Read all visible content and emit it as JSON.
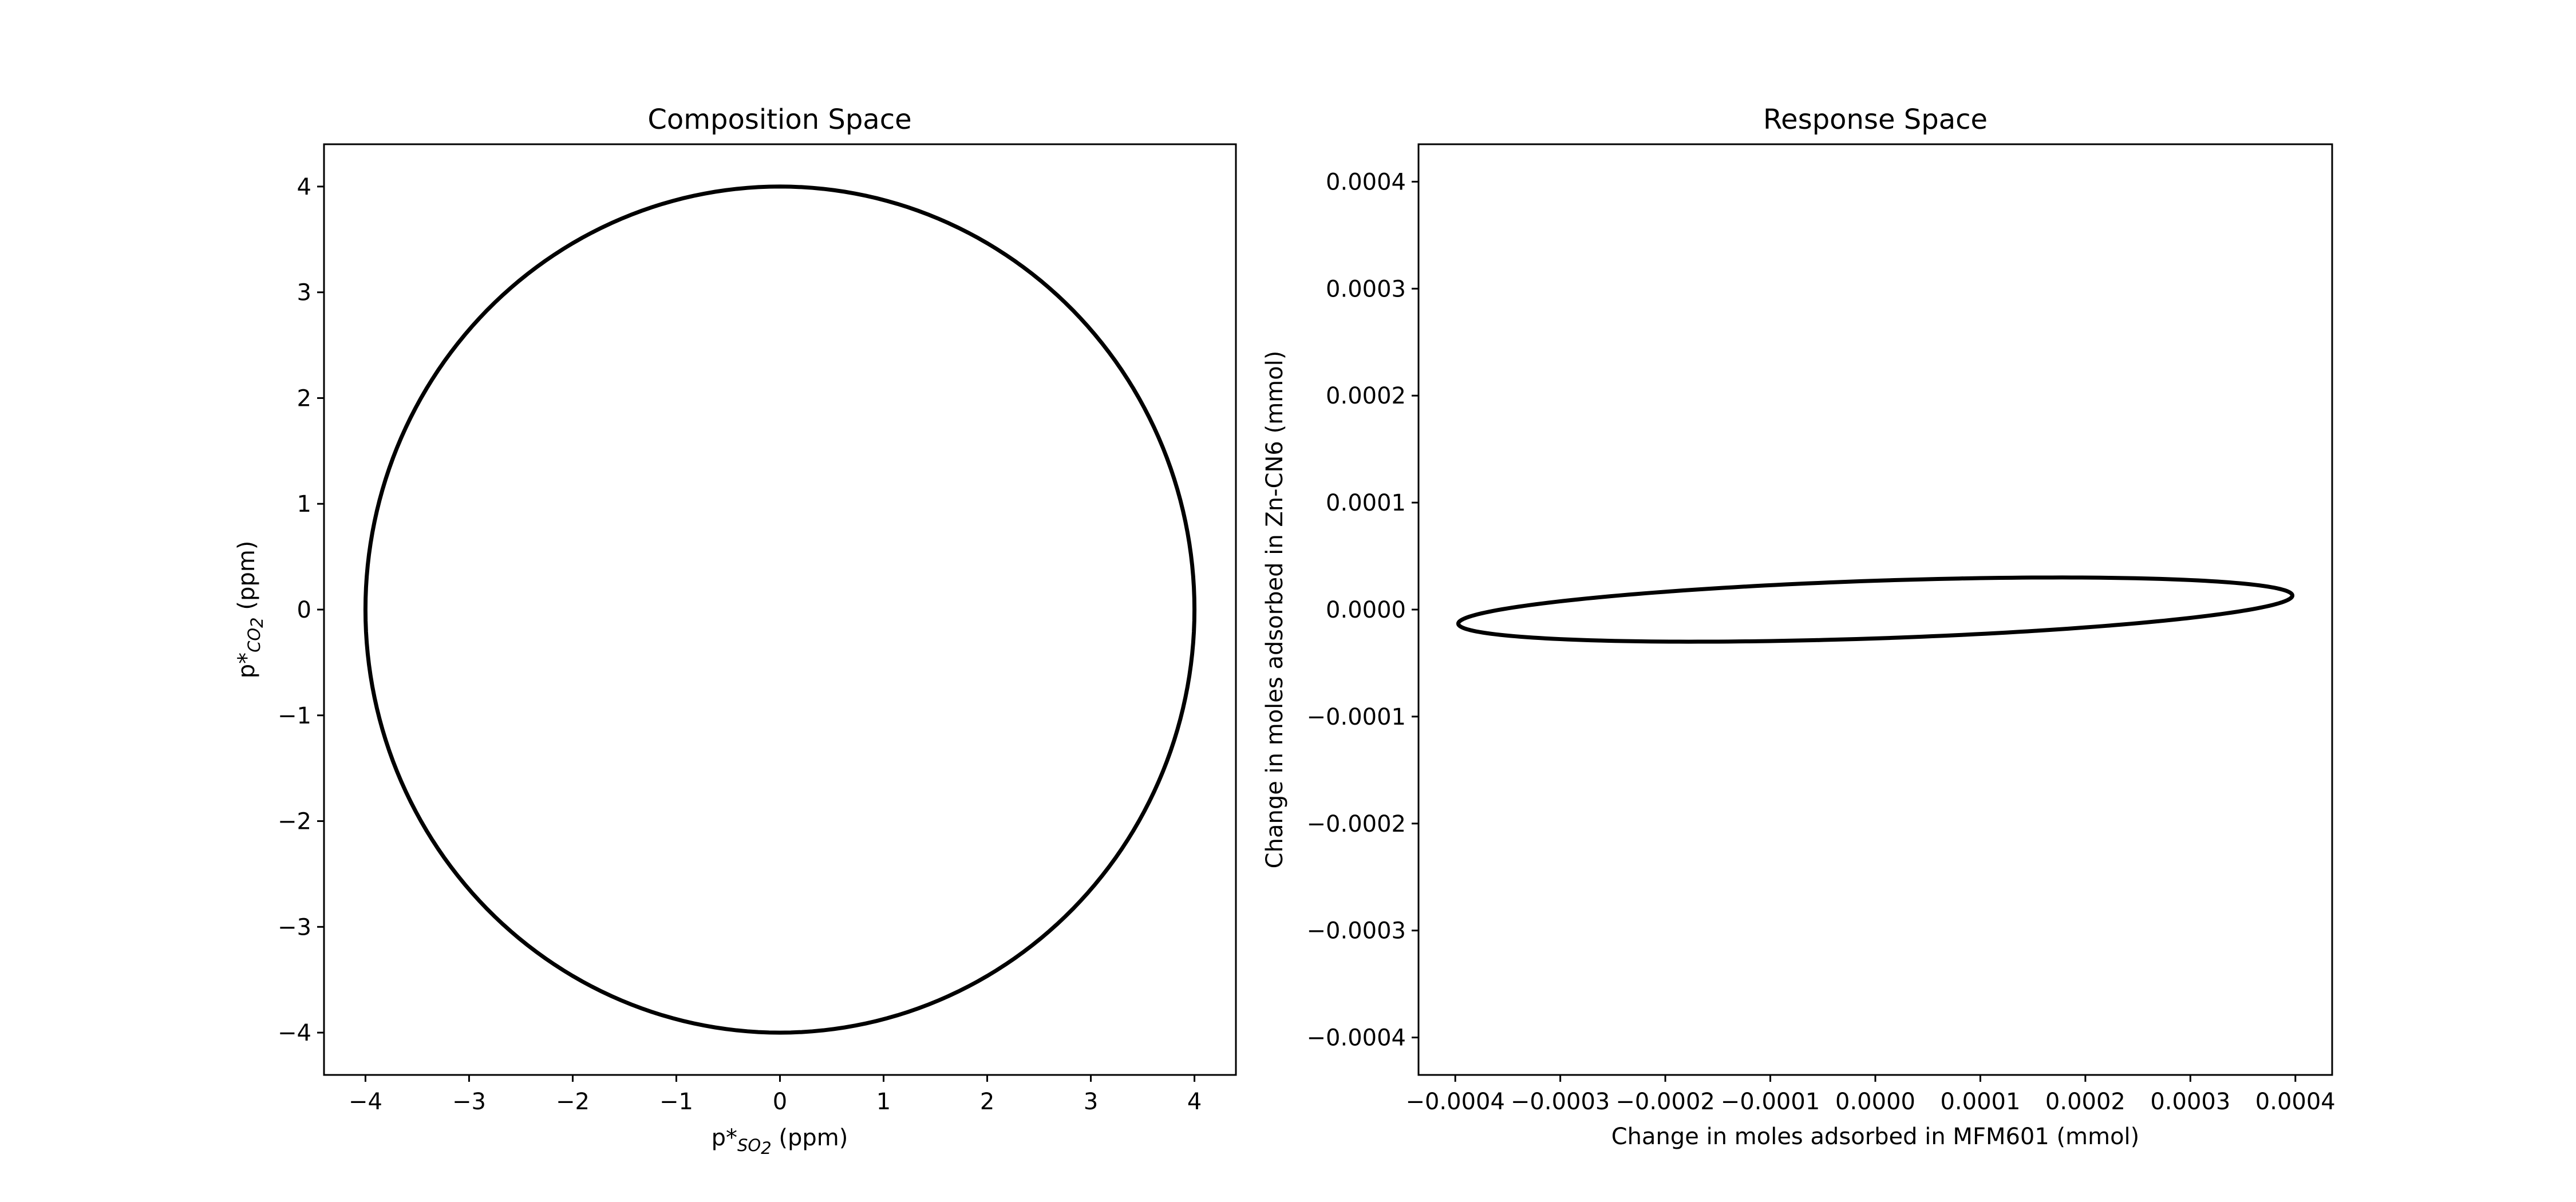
{
  "chart_data": [
    {
      "type": "line",
      "title": "Composition Space",
      "xlabel": {
        "prefix": "p*",
        "sub": "SO",
        "subsub": "2",
        "suffix": " (ppm)"
      },
      "ylabel": {
        "prefix": "p*",
        "sub": "CO",
        "subsub": "2",
        "suffix": " (ppm)"
      },
      "xlim": [
        -4.4,
        4.4
      ],
      "ylim": [
        -4.4,
        4.4
      ],
      "xticks": [
        -4,
        -3,
        -2,
        -1,
        0,
        1,
        2,
        3,
        4
      ],
      "yticks": [
        -4,
        -3,
        -2,
        -1,
        0,
        1,
        2,
        3,
        4
      ],
      "xtick_labels": [
        "−4",
        "−3",
        "−2",
        "−1",
        "0",
        "1",
        "2",
        "3",
        "4"
      ],
      "ytick_labels": [
        "−4",
        "−3",
        "−2",
        "−1",
        "0",
        "1",
        "2",
        "3",
        "4"
      ],
      "grid": false,
      "series": [
        {
          "shape": "ellipse",
          "center": [
            0,
            0
          ],
          "u": [
            4.0,
            0.0
          ],
          "v": [
            0.0,
            4.0
          ],
          "color": "#000000"
        }
      ]
    },
    {
      "type": "line",
      "title": "Response Space",
      "xlabel": {
        "text": "Change in moles adsorbed in MFM601 (mmol)"
      },
      "ylabel": {
        "text": "Change in moles adsorbed in Zn-CN6 (mmol)"
      },
      "xlim": [
        -0.000435,
        0.000435
      ],
      "ylim": [
        -0.000435,
        0.000435
      ],
      "xticks": [
        -0.0004,
        -0.0003,
        -0.0002,
        -0.0001,
        0.0,
        0.0001,
        0.0002,
        0.0003,
        0.0004
      ],
      "yticks": [
        -0.0004,
        -0.0003,
        -0.0002,
        -0.0001,
        0.0,
        0.0001,
        0.0002,
        0.0003,
        0.0004
      ],
      "xtick_labels": [
        "−0.0004",
        "−0.0003",
        "−0.0002",
        "−0.0001",
        "0.0000",
        "0.0001",
        "0.0002",
        "0.0003",
        "0.0004"
      ],
      "ytick_labels": [
        "−0.0004",
        "−0.0003",
        "−0.0002",
        "−0.0001",
        "0.0000",
        "0.0001",
        "0.0002",
        "0.0003",
        "0.0004"
      ],
      "grid": false,
      "series": [
        {
          "shape": "ellipse",
          "center": [
            0,
            0
          ],
          "u": [
            0.00039,
            1.8e-05
          ],
          "v": [
            7.5e-05,
            -2.4e-05
          ],
          "color": "#000000"
        }
      ]
    }
  ]
}
